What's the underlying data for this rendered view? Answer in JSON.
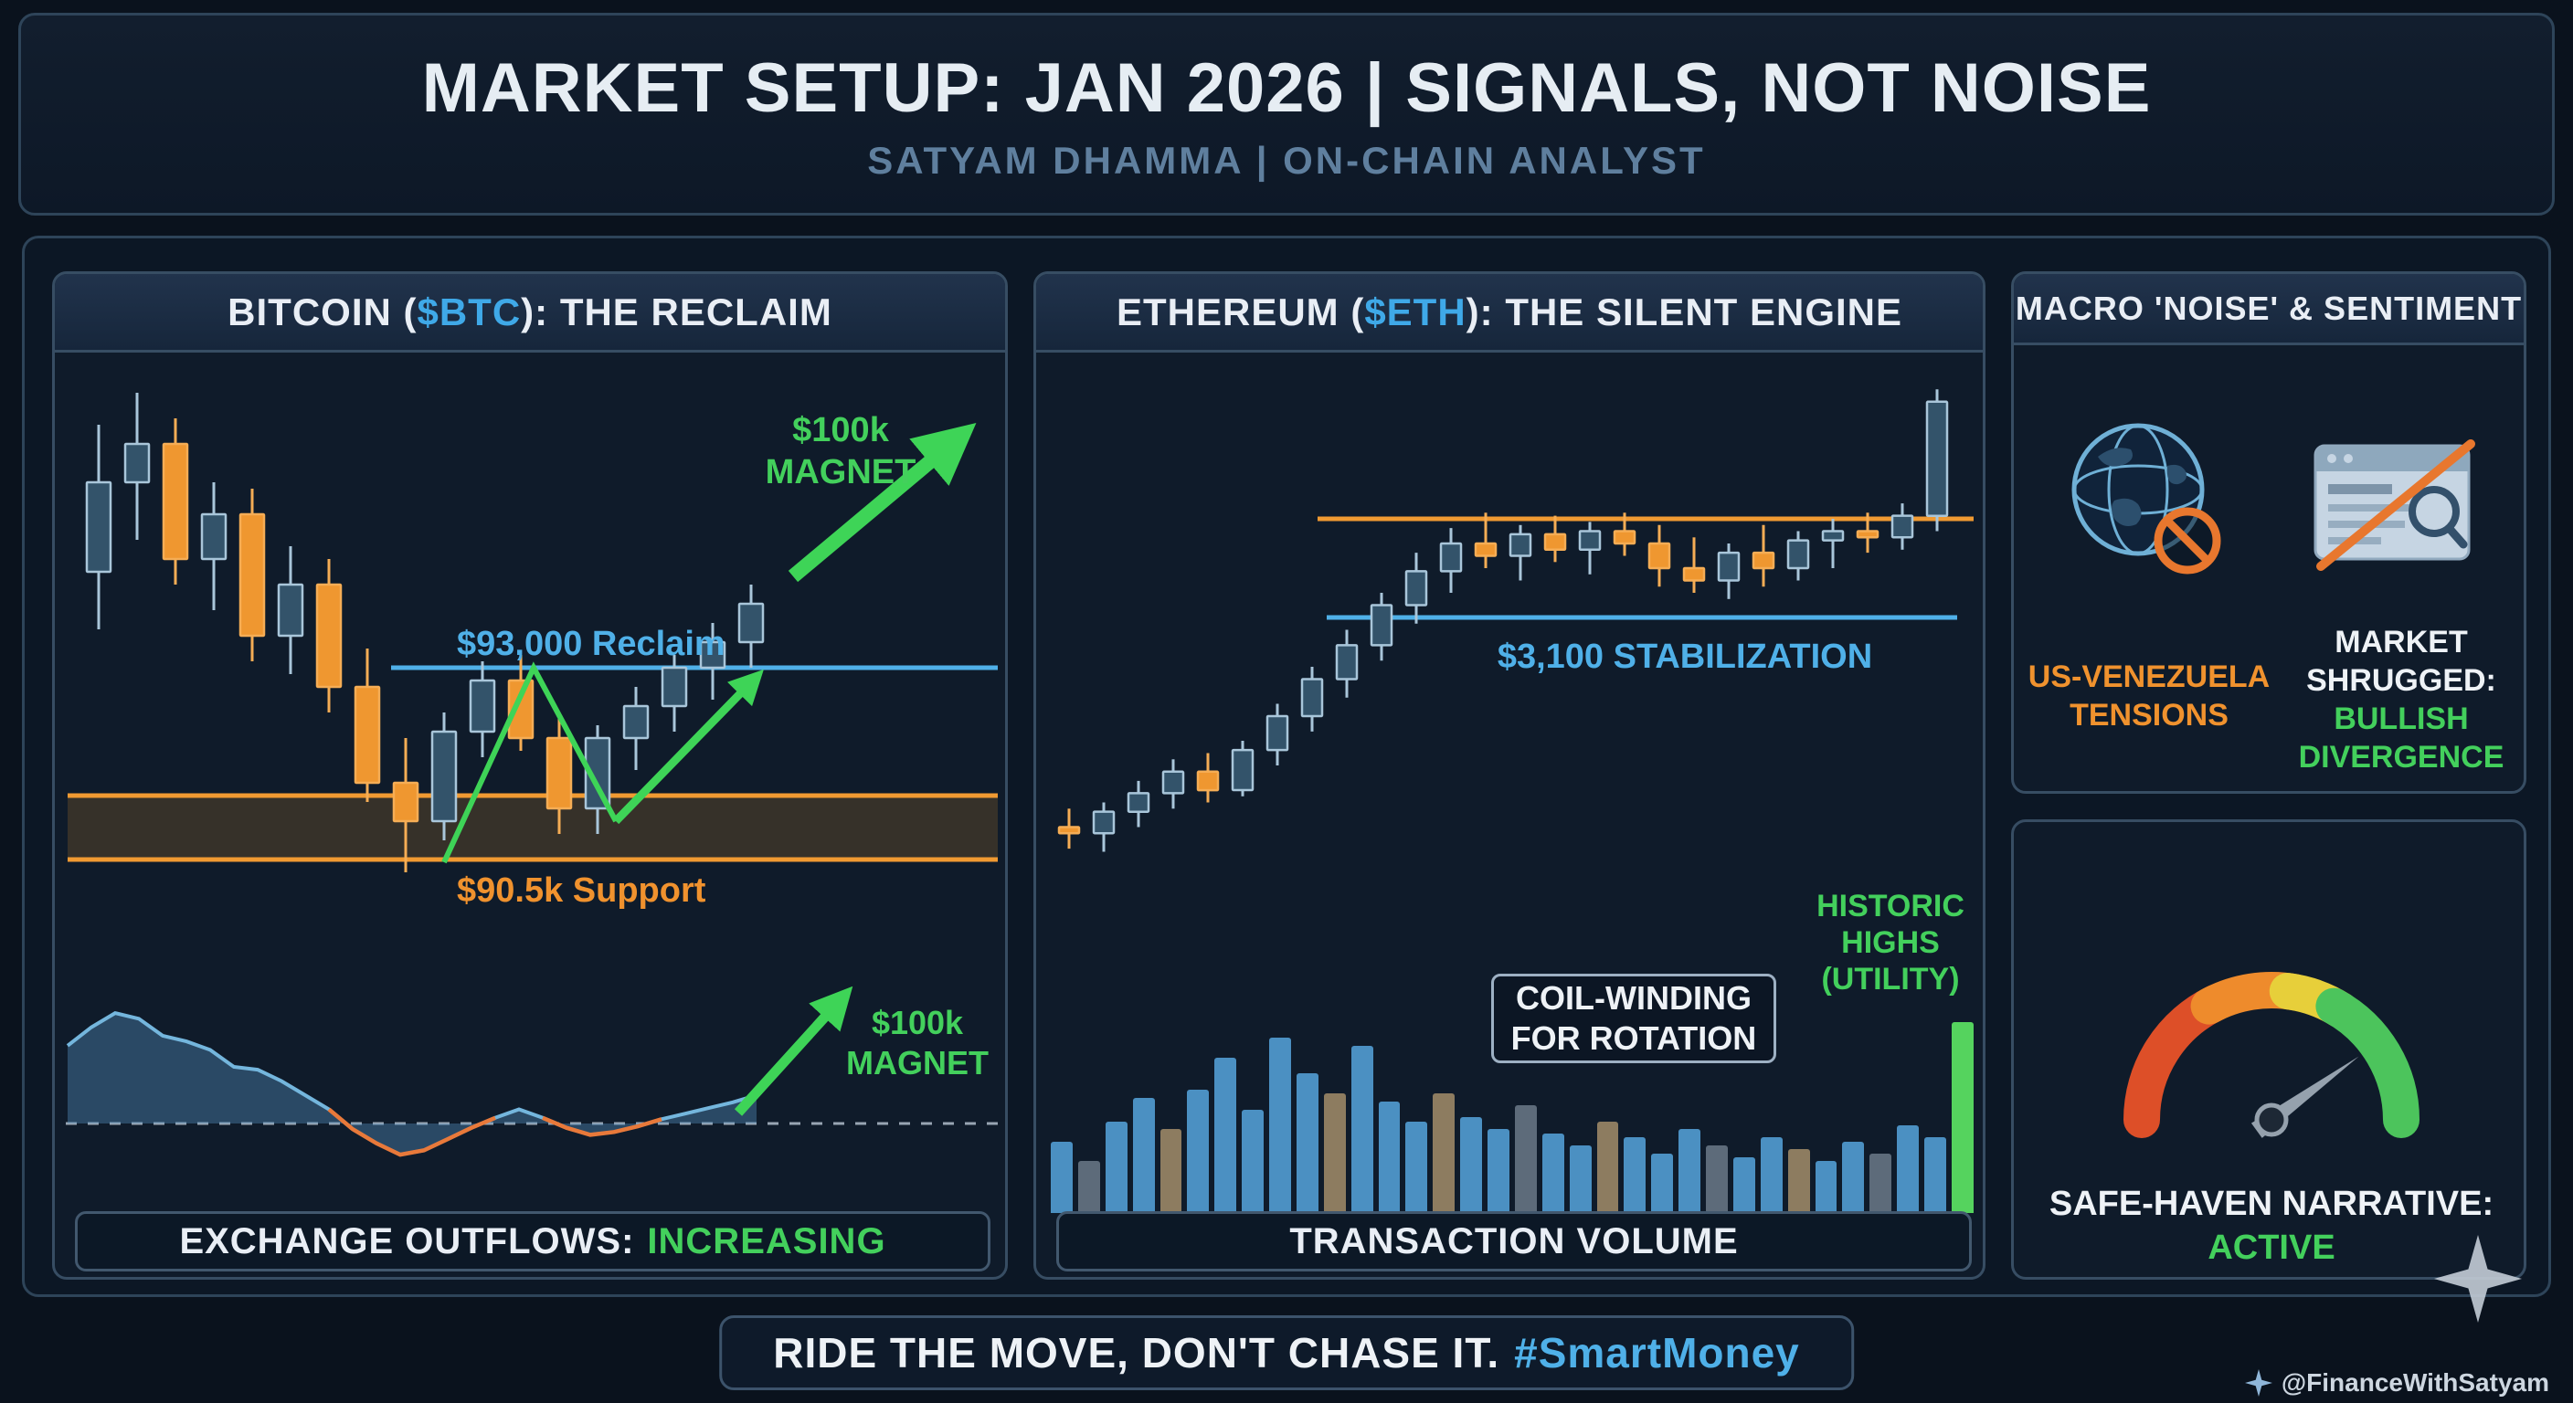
{
  "header": {
    "title": "MARKET SETUP: JAN 2026 | SIGNALS, NOT NOISE",
    "subtitle": "SATYAM DHAMMA | ON-CHAIN ANALYST"
  },
  "btc": {
    "title_pre": "BITCOIN (",
    "ticker": "$BTC",
    "title_post": "): THE RECLAIM",
    "reclaim_label": "$93,000 Reclaim",
    "support_label": "$90.5k Support",
    "magnet_line1": "$100k",
    "magnet_line2": "MAGNET",
    "footer_label": "EXCHANGE OUTFLOWS:",
    "footer_value": "INCREASING"
  },
  "eth": {
    "title_pre": "ETHEREUM (",
    "ticker": "$ETH",
    "title_post": "): THE SILENT ENGINE",
    "stabilization_label": "$3,100 STABILIZATION",
    "coil_line1": "COIL-WINDING",
    "coil_line2": "FOR ROTATION",
    "historic_line1": "HISTORIC",
    "historic_line2": "HIGHS",
    "historic_line3": "(UTILITY)",
    "footer_label": "TRANSACTION VOLUME"
  },
  "macro": {
    "title": "MACRO 'NOISE' & SENTIMENT",
    "tension_line1": "US-VENEZUELA",
    "tension_line2": "TENSIONS",
    "shrug_line1": "MARKET",
    "shrug_line2": "SHRUGGED:",
    "shrug_line3": "BULLISH",
    "shrug_line4": "DIVERGENCE"
  },
  "gauge": {
    "label_line1": "SAFE-HAVEN NARRATIVE:",
    "label_line2": "ACTIVE"
  },
  "footer": {
    "text": "RIDE THE MOVE, DON'T CHASE IT.",
    "hashtag": "#SmartMoney"
  },
  "credit": "@FinanceWithSatyam",
  "colors": {
    "background": "#0a121d",
    "panel": "#0f1b2a",
    "accent_blue": "#4fb0e8",
    "accent_orange": "#f0922e",
    "accent_green": "#43d05c",
    "candle_up": "#33536a",
    "candle_down": "#ef9730"
  },
  "chart_data": [
    {
      "id": "btc_price",
      "type": "candlestick",
      "title": "BITCOIN ($BTC): THE RECLAIM",
      "y_unit": "USD (thousands)",
      "ylim": [
        89.5,
        97.5
      ],
      "levels": [
        {
          "label": "$93,000 Reclaim",
          "value": 93.0,
          "color": "#4fb0e8"
        },
        {
          "label": "$90.5k Support",
          "value": 90.5,
          "zone": [
            90.0,
            91.0
          ],
          "color": "#f09a32"
        },
        {
          "label": "$100k MAGNET",
          "value": 100.0,
          "color": "#3ed457"
        }
      ],
      "candles": [
        [
          94.5,
          96.8,
          93.6,
          95.9
        ],
        [
          95.9,
          97.3,
          95.0,
          96.5
        ],
        [
          96.5,
          96.9,
          94.3,
          94.7
        ],
        [
          94.7,
          95.9,
          93.9,
          95.4
        ],
        [
          95.4,
          95.8,
          93.1,
          93.5
        ],
        [
          93.5,
          94.9,
          92.9,
          94.3
        ],
        [
          94.3,
          94.7,
          92.3,
          92.7
        ],
        [
          92.7,
          93.3,
          90.9,
          91.2
        ],
        [
          91.2,
          91.9,
          89.8,
          90.6
        ],
        [
          90.6,
          92.3,
          90.3,
          92.0
        ],
        [
          92.0,
          93.1,
          91.6,
          92.8
        ],
        [
          92.8,
          93.2,
          91.7,
          91.9
        ],
        [
          91.9,
          92.3,
          90.4,
          90.8
        ],
        [
          90.8,
          92.1,
          90.4,
          91.9
        ],
        [
          91.9,
          92.7,
          91.4,
          92.4
        ],
        [
          92.4,
          93.2,
          92.0,
          93.0
        ],
        [
          93.0,
          93.7,
          92.5,
          93.4
        ],
        [
          93.4,
          94.3,
          93.0,
          94.0
        ]
      ]
    },
    {
      "id": "btc_netflow",
      "type": "area",
      "title": "EXCHANGE OUTFLOWS: INCREASING",
      "baseline": 0,
      "values": [
        55,
        68,
        78,
        74,
        62,
        58,
        52,
        40,
        38,
        30,
        20,
        10,
        -4,
        -14,
        -22,
        -19,
        -11,
        -3,
        4,
        10,
        4,
        -3,
        -8,
        -6,
        -2,
        3,
        7,
        11,
        15,
        20
      ]
    },
    {
      "id": "eth_price",
      "type": "candlestick",
      "title": "ETHEREUM ($ETH): THE SILENT ENGINE",
      "y_unit": "USD",
      "ylim": [
        2700,
        3500
      ],
      "levels": [
        {
          "label": "",
          "value": 3260,
          "color": "#f09a32"
        },
        {
          "label": "$3,100 STABILIZATION",
          "value": 3100,
          "color": "#4fb0e8"
        }
      ],
      "candles": [
        [
          2760,
          2790,
          2725,
          2750
        ],
        [
          2750,
          2800,
          2720,
          2785
        ],
        [
          2785,
          2835,
          2760,
          2815
        ],
        [
          2815,
          2870,
          2790,
          2850
        ],
        [
          2850,
          2880,
          2800,
          2820
        ],
        [
          2820,
          2900,
          2810,
          2885
        ],
        [
          2885,
          2960,
          2860,
          2940
        ],
        [
          2940,
          3020,
          2915,
          3000
        ],
        [
          3000,
          3080,
          2970,
          3055
        ],
        [
          3055,
          3140,
          3030,
          3120
        ],
        [
          3120,
          3205,
          3090,
          3175
        ],
        [
          3175,
          3245,
          3140,
          3220
        ],
        [
          3220,
          3270,
          3180,
          3200
        ],
        [
          3200,
          3250,
          3160,
          3235
        ],
        [
          3235,
          3265,
          3190,
          3210
        ],
        [
          3210,
          3255,
          3170,
          3240
        ],
        [
          3240,
          3270,
          3200,
          3220
        ],
        [
          3220,
          3250,
          3150,
          3180
        ],
        [
          3180,
          3230,
          3140,
          3160
        ],
        [
          3160,
          3220,
          3130,
          3205
        ],
        [
          3205,
          3250,
          3150,
          3180
        ],
        [
          3180,
          3240,
          3160,
          3225
        ],
        [
          3225,
          3260,
          3180,
          3240
        ],
        [
          3240,
          3270,
          3205,
          3230
        ],
        [
          3230,
          3285,
          3210,
          3265
        ],
        [
          3265,
          3470,
          3240,
          3450
        ]
      ]
    },
    {
      "id": "eth_volume",
      "type": "bar",
      "title": "TRANSACTION VOLUME",
      "ylim": [
        0,
        100
      ],
      "values": [
        36,
        26,
        46,
        58,
        42,
        62,
        78,
        52,
        88,
        70,
        60,
        84,
        56,
        46,
        60,
        48,
        42,
        54,
        40,
        34,
        46,
        38,
        30,
        42,
        34,
        28,
        38,
        32,
        26,
        36,
        30,
        44,
        38,
        96
      ],
      "colors": [
        "b",
        "g",
        "b",
        "b",
        "t",
        "b",
        "b",
        "b",
        "b",
        "b",
        "t",
        "b",
        "b",
        "b",
        "t",
        "b",
        "b",
        "g",
        "b",
        "b",
        "t",
        "b",
        "b",
        "b",
        "g",
        "b",
        "b",
        "t",
        "b",
        "b",
        "g",
        "b",
        "b",
        "G"
      ],
      "palette": {
        "b": "#4b90c2",
        "t": "#8d7c60",
        "g": "#5d6b7a",
        "G": "#55d35e"
      },
      "annotation_highlight": "HISTORIC HIGHS (UTILITY)",
      "annotation_box": "COIL-WINDING FOR ROTATION"
    },
    {
      "id": "sentiment_gauge",
      "type": "gauge",
      "label": "SAFE-HAVEN NARRATIVE: ACTIVE",
      "value": 0.8,
      "range": [
        0,
        1
      ],
      "segments": [
        {
          "from": 0.0,
          "to": 0.36,
          "color": "#dd4f28"
        },
        {
          "from": 0.34,
          "to": 0.56,
          "color": "#ee8b2c"
        },
        {
          "from": 0.54,
          "to": 0.68,
          "color": "#e7cf3a"
        },
        {
          "from": 0.66,
          "to": 1.0,
          "color": "#4cc45c"
        }
      ]
    }
  ]
}
